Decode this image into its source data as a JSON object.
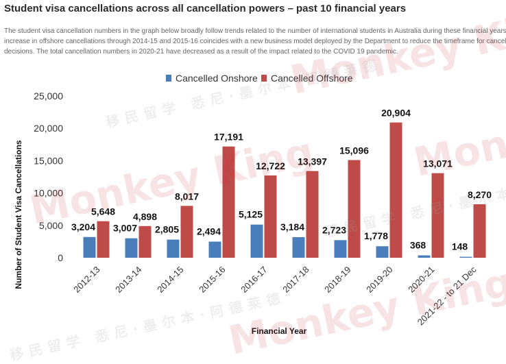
{
  "header": {
    "title": "Student visa cancellations across all cancellation powers – past 10 financial years",
    "description_lines": [
      "The student visa cancellation numbers in the graph below broadly follow trends related to the number of international students in Australia during these financial years. T",
      "increase in offshore cancellations through 2014-15 and 2015-16 coincides with a new business model deployed by the Department to reduce the timeframe for cancellat",
      "decisions. The total cancellation numbers in 2020-21 have decreased as a result of the impact related to the COVID 19 pandemic."
    ]
  },
  "watermark": {
    "brand": "Monkey King",
    "chinese": "移民留学 悉尼·墨尔本·阿德莱德"
  },
  "chart_data": {
    "type": "bar",
    "categories": [
      "2012-13",
      "2013-14",
      "2014-15",
      "2015-16",
      "2016-17",
      "2017-18",
      "2018-19",
      "2019-20",
      "2020-21",
      "2021-22 - to 21 Dec"
    ],
    "series": [
      {
        "name": "Cancelled Onshore",
        "color": "#4a7ebb",
        "values": [
          3204,
          3007,
          2805,
          2494,
          5125,
          3184,
          2723,
          1778,
          368,
          148
        ],
        "labels": [
          "3,204",
          "3,007",
          "2,805",
          "2,494",
          "5,125",
          "3,184",
          "2,723",
          "1,778",
          "368",
          "148"
        ]
      },
      {
        "name": "Cancelled Offshore",
        "color": "#be4b48",
        "values": [
          5648,
          4898,
          8017,
          17191,
          12722,
          13397,
          15096,
          20904,
          13071,
          8270
        ],
        "labels": [
          "5,648",
          "4,898",
          "8,017",
          "17,191",
          "12,722",
          "13,397",
          "15,096",
          "20,904",
          "13,071",
          "8,270"
        ]
      }
    ],
    "yticks": [
      "0",
      "5,000",
      "10,000",
      "15,000",
      "20,000",
      "25,000"
    ],
    "ylim": [
      0,
      25000
    ],
    "xlabel": "Financial Year",
    "ylabel": "Number of Student Visa Cancellations",
    "legend_position": "top-center",
    "grid": false
  }
}
